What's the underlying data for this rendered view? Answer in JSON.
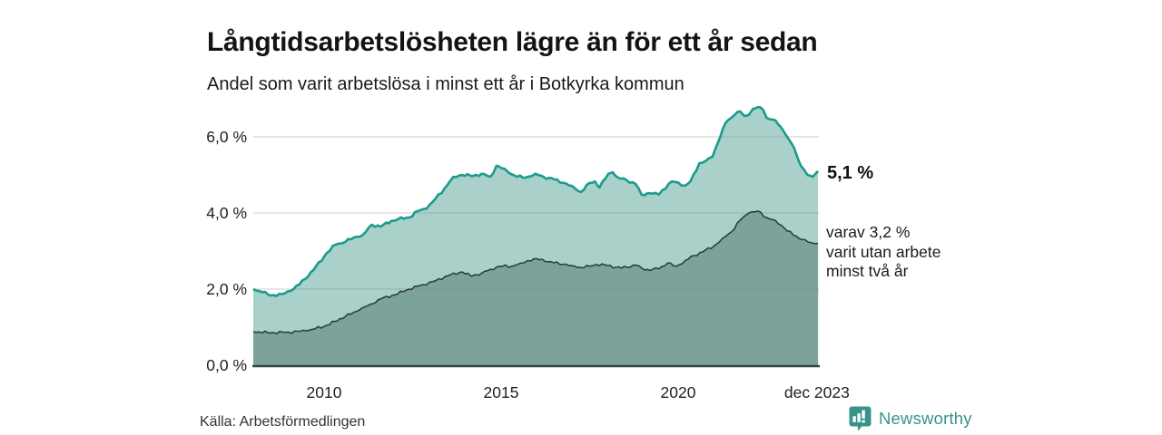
{
  "header": {
    "title": "Långtidsarbetslösheten lägre än för ett år sedan",
    "subtitle": "Andel som varit arbetslösa i minst ett år i Botkyrka kommun"
  },
  "annotations": {
    "latest_value": "5,1 %",
    "secondary_lines": [
      "varav 3,2 %",
      "varit utan arbete",
      "minst två år"
    ]
  },
  "footer": {
    "source": "Källa: Arbetsförmedlingen",
    "brand": "Newsworthy"
  },
  "colors": {
    "line_primary": "#1a9b8b",
    "fill_primary": "#a9d1ca",
    "line_secondary": "#2e403b",
    "fill_secondary": "#7ba39c",
    "baseline": "#32463f",
    "gridline": "rgba(130,130,130,0.32)",
    "axis_text": "#1f1f1f",
    "brand_teal": "#3a9389"
  },
  "chart_data": {
    "type": "area",
    "title": "Långtidsarbetslösheten lägre än för ett år sedan",
    "subtitle": "Andel som varit arbetslösa i minst ett år i Botkyrka kommun",
    "unit": "%",
    "grid": true,
    "ylim": [
      0,
      7
    ],
    "xlim": [
      2008.0,
      2023.95
    ],
    "y_ticks": [
      {
        "label": "0,0 %",
        "value": 0
      },
      {
        "label": "2,0 %",
        "value": 2
      },
      {
        "label": "4,0 %",
        "value": 4
      },
      {
        "label": "6,0 %",
        "value": 6
      }
    ],
    "x_ticks": [
      {
        "label": "2010",
        "year": 2010
      },
      {
        "label": "2015",
        "year": 2015
      },
      {
        "label": "2020",
        "year": 2020
      },
      {
        "label": "dec 2023",
        "year": 2023.92
      }
    ],
    "series": [
      {
        "name": "Andel arbetslösa minst ett år",
        "end_value": 5.1,
        "points": [
          [
            2008.0,
            2.0
          ],
          [
            2008.25,
            1.92
          ],
          [
            2008.5,
            1.83
          ],
          [
            2008.8,
            1.87
          ],
          [
            2009.05,
            1.95
          ],
          [
            2009.3,
            2.12
          ],
          [
            2009.7,
            2.5
          ],
          [
            2010.08,
            2.95
          ],
          [
            2010.33,
            3.17
          ],
          [
            2010.6,
            3.24
          ],
          [
            2010.85,
            3.36
          ],
          [
            2011.1,
            3.43
          ],
          [
            2011.35,
            3.69
          ],
          [
            2011.6,
            3.64
          ],
          [
            2011.9,
            3.79
          ],
          [
            2012.1,
            3.84
          ],
          [
            2012.4,
            3.88
          ],
          [
            2012.65,
            4.05
          ],
          [
            2012.9,
            4.12
          ],
          [
            2013.15,
            4.38
          ],
          [
            2013.4,
            4.64
          ],
          [
            2013.65,
            4.95
          ],
          [
            2013.9,
            5.0
          ],
          [
            2014.2,
            4.97
          ],
          [
            2014.45,
            5.03
          ],
          [
            2014.7,
            4.95
          ],
          [
            2014.87,
            5.24
          ],
          [
            2015.0,
            5.18
          ],
          [
            2015.2,
            5.07
          ],
          [
            2015.45,
            4.95
          ],
          [
            2015.7,
            4.93
          ],
          [
            2015.97,
            5.03
          ],
          [
            2016.2,
            4.95
          ],
          [
            2016.5,
            4.88
          ],
          [
            2016.75,
            4.79
          ],
          [
            2017.0,
            4.71
          ],
          [
            2017.25,
            4.55
          ],
          [
            2017.5,
            4.79
          ],
          [
            2017.65,
            4.83
          ],
          [
            2017.78,
            4.67
          ],
          [
            2018.03,
            5.03
          ],
          [
            2018.15,
            5.07
          ],
          [
            2018.3,
            4.93
          ],
          [
            2018.55,
            4.86
          ],
          [
            2018.8,
            4.76
          ],
          [
            2018.97,
            4.48
          ],
          [
            2019.2,
            4.52
          ],
          [
            2019.45,
            4.48
          ],
          [
            2019.56,
            4.6
          ],
          [
            2019.82,
            4.83
          ],
          [
            2020.0,
            4.8
          ],
          [
            2020.2,
            4.72
          ],
          [
            2020.35,
            4.83
          ],
          [
            2020.6,
            5.31
          ],
          [
            2020.77,
            5.36
          ],
          [
            2020.97,
            5.48
          ],
          [
            2021.1,
            5.79
          ],
          [
            2021.35,
            6.38
          ],
          [
            2021.5,
            6.5
          ],
          [
            2021.6,
            6.58
          ],
          [
            2021.75,
            6.67
          ],
          [
            2021.87,
            6.55
          ],
          [
            2022.0,
            6.58
          ],
          [
            2022.12,
            6.74
          ],
          [
            2022.25,
            6.78
          ],
          [
            2022.4,
            6.71
          ],
          [
            2022.5,
            6.5
          ],
          [
            2022.75,
            6.43
          ],
          [
            2022.9,
            6.26
          ],
          [
            2023.03,
            6.07
          ],
          [
            2023.15,
            5.9
          ],
          [
            2023.28,
            5.7
          ],
          [
            2023.4,
            5.38
          ],
          [
            2023.55,
            5.15
          ],
          [
            2023.65,
            5.0
          ],
          [
            2023.8,
            4.95
          ],
          [
            2023.88,
            5.03
          ],
          [
            2023.95,
            5.1
          ]
        ]
      },
      {
        "name": "varav utan arbete minst två år",
        "end_value": 3.2,
        "points": [
          [
            2008.0,
            0.88
          ],
          [
            2008.5,
            0.85
          ],
          [
            2009.0,
            0.87
          ],
          [
            2009.5,
            0.9
          ],
          [
            2010.0,
            1.02
          ],
          [
            2010.3,
            1.15
          ],
          [
            2010.6,
            1.28
          ],
          [
            2011.0,
            1.45
          ],
          [
            2011.3,
            1.6
          ],
          [
            2011.6,
            1.74
          ],
          [
            2012.0,
            1.85
          ],
          [
            2012.4,
            2.0
          ],
          [
            2012.8,
            2.12
          ],
          [
            2013.15,
            2.22
          ],
          [
            2013.5,
            2.35
          ],
          [
            2013.9,
            2.45
          ],
          [
            2014.15,
            2.34
          ],
          [
            2014.45,
            2.42
          ],
          [
            2014.7,
            2.52
          ],
          [
            2014.95,
            2.6
          ],
          [
            2015.3,
            2.6
          ],
          [
            2015.55,
            2.68
          ],
          [
            2015.75,
            2.75
          ],
          [
            2016.0,
            2.8
          ],
          [
            2016.4,
            2.72
          ],
          [
            2016.75,
            2.65
          ],
          [
            2017.0,
            2.62
          ],
          [
            2017.25,
            2.57
          ],
          [
            2017.5,
            2.6
          ],
          [
            2017.7,
            2.65
          ],
          [
            2018.0,
            2.62
          ],
          [
            2018.4,
            2.55
          ],
          [
            2018.8,
            2.63
          ],
          [
            2019.05,
            2.5
          ],
          [
            2019.45,
            2.53
          ],
          [
            2019.7,
            2.68
          ],
          [
            2019.95,
            2.6
          ],
          [
            2020.2,
            2.75
          ],
          [
            2020.45,
            2.88
          ],
          [
            2020.7,
            2.98
          ],
          [
            2021.0,
            3.12
          ],
          [
            2021.25,
            3.33
          ],
          [
            2021.5,
            3.5
          ],
          [
            2021.75,
            3.81
          ],
          [
            2022.0,
            4.0
          ],
          [
            2022.25,
            4.05
          ],
          [
            2022.5,
            3.88
          ],
          [
            2022.75,
            3.8
          ],
          [
            2023.0,
            3.6
          ],
          [
            2023.25,
            3.42
          ],
          [
            2023.5,
            3.3
          ],
          [
            2023.75,
            3.22
          ],
          [
            2023.95,
            3.2
          ]
        ]
      }
    ],
    "legend_position": "right-annotations",
    "source": "Källa: Arbetsförmedlingen"
  }
}
